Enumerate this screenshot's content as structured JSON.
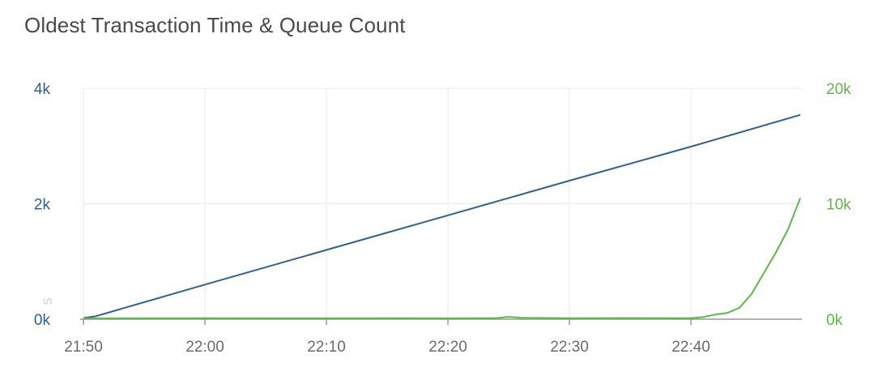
{
  "title": "Oldest Transaction Time & Queue Count",
  "colors": {
    "left_series": "#2f5f95",
    "right_series": "#5cb847",
    "grid": "#e9e9e9",
    "axis": "#999999",
    "title": "#4a4a4a"
  },
  "chart_data": {
    "type": "line",
    "title": "Oldest Transaction Time & Queue Count",
    "xlabel": "",
    "ylabel": "s",
    "y2label": "",
    "x_ticks": [
      "21:50",
      "22:00",
      "22:10",
      "22:20",
      "22:30",
      "22:40"
    ],
    "x_range": [
      "21:50",
      "22:49"
    ],
    "ylim": [
      0,
      4000
    ],
    "y2lim": [
      0,
      20000
    ],
    "y_ticks": [
      "0k",
      "2k",
      "4k"
    ],
    "y2_ticks": [
      "0k",
      "10k",
      "20k"
    ],
    "grid": true,
    "series": [
      {
        "axis": "left",
        "color": "#2f5f95",
        "x": [
          "21:50",
          "21:51",
          "22:00",
          "22:10",
          "22:20",
          "22:30",
          "22:40",
          "22:49"
        ],
        "values": [
          20,
          50,
          600,
          1200,
          1800,
          2400,
          2990,
          3540
        ]
      },
      {
        "axis": "right",
        "color": "#5cb847",
        "x": [
          "21:50",
          "21:55",
          "22:00",
          "22:05",
          "22:10",
          "22:15",
          "22:20",
          "22:24",
          "22:25",
          "22:26",
          "22:30",
          "22:35",
          "22:40",
          "22:41",
          "22:42",
          "22:43",
          "22:44",
          "22:45",
          "22:46",
          "22:47",
          "22:48",
          "22:49"
        ],
        "values": [
          60,
          80,
          90,
          80,
          80,
          90,
          80,
          100,
          200,
          120,
          90,
          100,
          90,
          180,
          400,
          550,
          1000,
          2200,
          4000,
          5800,
          7800,
          10500
        ]
      }
    ]
  }
}
